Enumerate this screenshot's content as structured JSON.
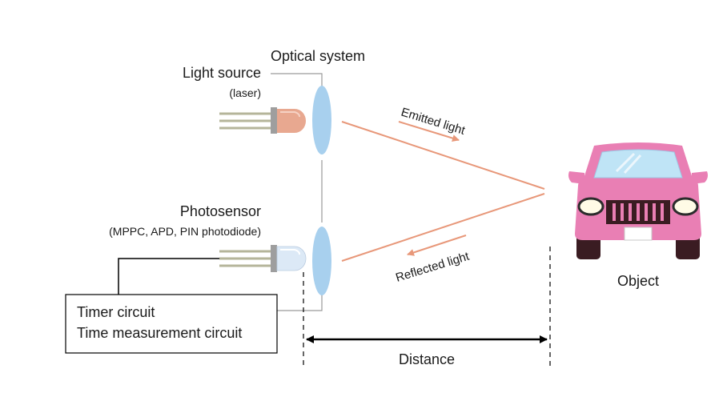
{
  "labels": {
    "optical_system": "Optical system",
    "light_source": "Light source",
    "light_source_sub": "(laser)",
    "emitted_light": "Emitted light",
    "photosensor": "Photosensor",
    "photosensor_sub": "(MPPC, APD, PIN photodiode)",
    "reflected_light": "Reflected light",
    "object": "Object",
    "timer_line1": "Timer circuit",
    "timer_line2": "Time measurement circuit",
    "distance": "Distance"
  },
  "colors": {
    "lens": "#a8d0ee",
    "beam": "#e8987a",
    "laser_body": "#e8a890",
    "sensor_body": "#dce9f6",
    "car_body": "#e97fb4",
    "car_dark": "#3a1c22",
    "line": "#9a9a9a"
  }
}
